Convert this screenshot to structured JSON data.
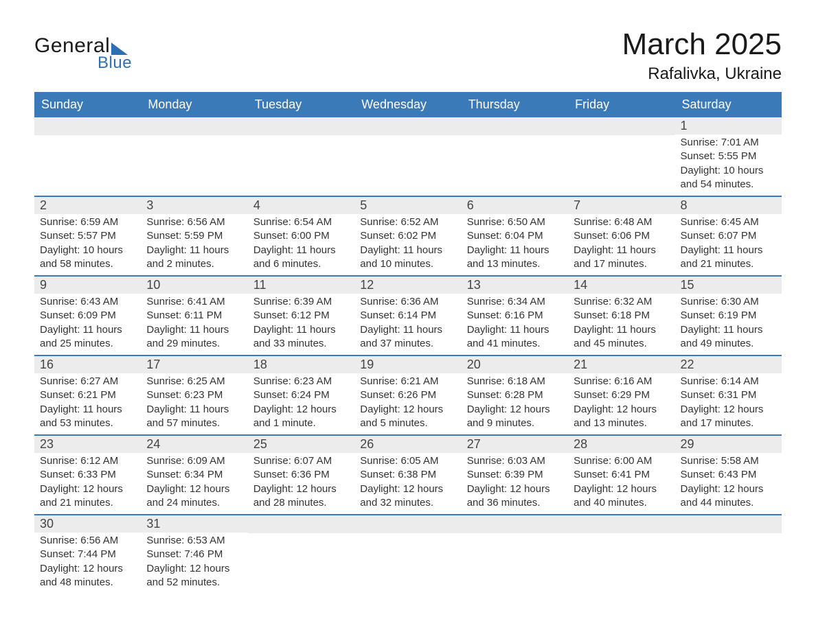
{
  "logo": {
    "text_general": "General",
    "text_blue": "Blue"
  },
  "title": {
    "month": "March 2025",
    "location": "Rafalivka, Ukraine"
  },
  "colors": {
    "header_bg": "#3b7ab8",
    "header_text": "#ffffff",
    "daynum_bg": "#ececec",
    "border": "#3b7ab8",
    "logo_accent": "#2e6fb2",
    "body_text": "#333333"
  },
  "weekdays": [
    "Sunday",
    "Monday",
    "Tuesday",
    "Wednesday",
    "Thursday",
    "Friday",
    "Saturday"
  ],
  "weeks": [
    [
      null,
      null,
      null,
      null,
      null,
      null,
      {
        "n": "1",
        "sr": "Sunrise: 7:01 AM",
        "ss": "Sunset: 5:55 PM",
        "dl1": "Daylight: 10 hours",
        "dl2": "and 54 minutes."
      }
    ],
    [
      {
        "n": "2",
        "sr": "Sunrise: 6:59 AM",
        "ss": "Sunset: 5:57 PM",
        "dl1": "Daylight: 10 hours",
        "dl2": "and 58 minutes."
      },
      {
        "n": "3",
        "sr": "Sunrise: 6:56 AM",
        "ss": "Sunset: 5:59 PM",
        "dl1": "Daylight: 11 hours",
        "dl2": "and 2 minutes."
      },
      {
        "n": "4",
        "sr": "Sunrise: 6:54 AM",
        "ss": "Sunset: 6:00 PM",
        "dl1": "Daylight: 11 hours",
        "dl2": "and 6 minutes."
      },
      {
        "n": "5",
        "sr": "Sunrise: 6:52 AM",
        "ss": "Sunset: 6:02 PM",
        "dl1": "Daylight: 11 hours",
        "dl2": "and 10 minutes."
      },
      {
        "n": "6",
        "sr": "Sunrise: 6:50 AM",
        "ss": "Sunset: 6:04 PM",
        "dl1": "Daylight: 11 hours",
        "dl2": "and 13 minutes."
      },
      {
        "n": "7",
        "sr": "Sunrise: 6:48 AM",
        "ss": "Sunset: 6:06 PM",
        "dl1": "Daylight: 11 hours",
        "dl2": "and 17 minutes."
      },
      {
        "n": "8",
        "sr": "Sunrise: 6:45 AM",
        "ss": "Sunset: 6:07 PM",
        "dl1": "Daylight: 11 hours",
        "dl2": "and 21 minutes."
      }
    ],
    [
      {
        "n": "9",
        "sr": "Sunrise: 6:43 AM",
        "ss": "Sunset: 6:09 PM",
        "dl1": "Daylight: 11 hours",
        "dl2": "and 25 minutes."
      },
      {
        "n": "10",
        "sr": "Sunrise: 6:41 AM",
        "ss": "Sunset: 6:11 PM",
        "dl1": "Daylight: 11 hours",
        "dl2": "and 29 minutes."
      },
      {
        "n": "11",
        "sr": "Sunrise: 6:39 AM",
        "ss": "Sunset: 6:12 PM",
        "dl1": "Daylight: 11 hours",
        "dl2": "and 33 minutes."
      },
      {
        "n": "12",
        "sr": "Sunrise: 6:36 AM",
        "ss": "Sunset: 6:14 PM",
        "dl1": "Daylight: 11 hours",
        "dl2": "and 37 minutes."
      },
      {
        "n": "13",
        "sr": "Sunrise: 6:34 AM",
        "ss": "Sunset: 6:16 PM",
        "dl1": "Daylight: 11 hours",
        "dl2": "and 41 minutes."
      },
      {
        "n": "14",
        "sr": "Sunrise: 6:32 AM",
        "ss": "Sunset: 6:18 PM",
        "dl1": "Daylight: 11 hours",
        "dl2": "and 45 minutes."
      },
      {
        "n": "15",
        "sr": "Sunrise: 6:30 AM",
        "ss": "Sunset: 6:19 PM",
        "dl1": "Daylight: 11 hours",
        "dl2": "and 49 minutes."
      }
    ],
    [
      {
        "n": "16",
        "sr": "Sunrise: 6:27 AM",
        "ss": "Sunset: 6:21 PM",
        "dl1": "Daylight: 11 hours",
        "dl2": "and 53 minutes."
      },
      {
        "n": "17",
        "sr": "Sunrise: 6:25 AM",
        "ss": "Sunset: 6:23 PM",
        "dl1": "Daylight: 11 hours",
        "dl2": "and 57 minutes."
      },
      {
        "n": "18",
        "sr": "Sunrise: 6:23 AM",
        "ss": "Sunset: 6:24 PM",
        "dl1": "Daylight: 12 hours",
        "dl2": "and 1 minute."
      },
      {
        "n": "19",
        "sr": "Sunrise: 6:21 AM",
        "ss": "Sunset: 6:26 PM",
        "dl1": "Daylight: 12 hours",
        "dl2": "and 5 minutes."
      },
      {
        "n": "20",
        "sr": "Sunrise: 6:18 AM",
        "ss": "Sunset: 6:28 PM",
        "dl1": "Daylight: 12 hours",
        "dl2": "and 9 minutes."
      },
      {
        "n": "21",
        "sr": "Sunrise: 6:16 AM",
        "ss": "Sunset: 6:29 PM",
        "dl1": "Daylight: 12 hours",
        "dl2": "and 13 minutes."
      },
      {
        "n": "22",
        "sr": "Sunrise: 6:14 AM",
        "ss": "Sunset: 6:31 PM",
        "dl1": "Daylight: 12 hours",
        "dl2": "and 17 minutes."
      }
    ],
    [
      {
        "n": "23",
        "sr": "Sunrise: 6:12 AM",
        "ss": "Sunset: 6:33 PM",
        "dl1": "Daylight: 12 hours",
        "dl2": "and 21 minutes."
      },
      {
        "n": "24",
        "sr": "Sunrise: 6:09 AM",
        "ss": "Sunset: 6:34 PM",
        "dl1": "Daylight: 12 hours",
        "dl2": "and 24 minutes."
      },
      {
        "n": "25",
        "sr": "Sunrise: 6:07 AM",
        "ss": "Sunset: 6:36 PM",
        "dl1": "Daylight: 12 hours",
        "dl2": "and 28 minutes."
      },
      {
        "n": "26",
        "sr": "Sunrise: 6:05 AM",
        "ss": "Sunset: 6:38 PM",
        "dl1": "Daylight: 12 hours",
        "dl2": "and 32 minutes."
      },
      {
        "n": "27",
        "sr": "Sunrise: 6:03 AM",
        "ss": "Sunset: 6:39 PM",
        "dl1": "Daylight: 12 hours",
        "dl2": "and 36 minutes."
      },
      {
        "n": "28",
        "sr": "Sunrise: 6:00 AM",
        "ss": "Sunset: 6:41 PM",
        "dl1": "Daylight: 12 hours",
        "dl2": "and 40 minutes."
      },
      {
        "n": "29",
        "sr": "Sunrise: 5:58 AM",
        "ss": "Sunset: 6:43 PM",
        "dl1": "Daylight: 12 hours",
        "dl2": "and 44 minutes."
      }
    ],
    [
      {
        "n": "30",
        "sr": "Sunrise: 6:56 AM",
        "ss": "Sunset: 7:44 PM",
        "dl1": "Daylight: 12 hours",
        "dl2": "and 48 minutes."
      },
      {
        "n": "31",
        "sr": "Sunrise: 6:53 AM",
        "ss": "Sunset: 7:46 PM",
        "dl1": "Daylight: 12 hours",
        "dl2": "and 52 minutes."
      },
      null,
      null,
      null,
      null,
      null
    ]
  ]
}
